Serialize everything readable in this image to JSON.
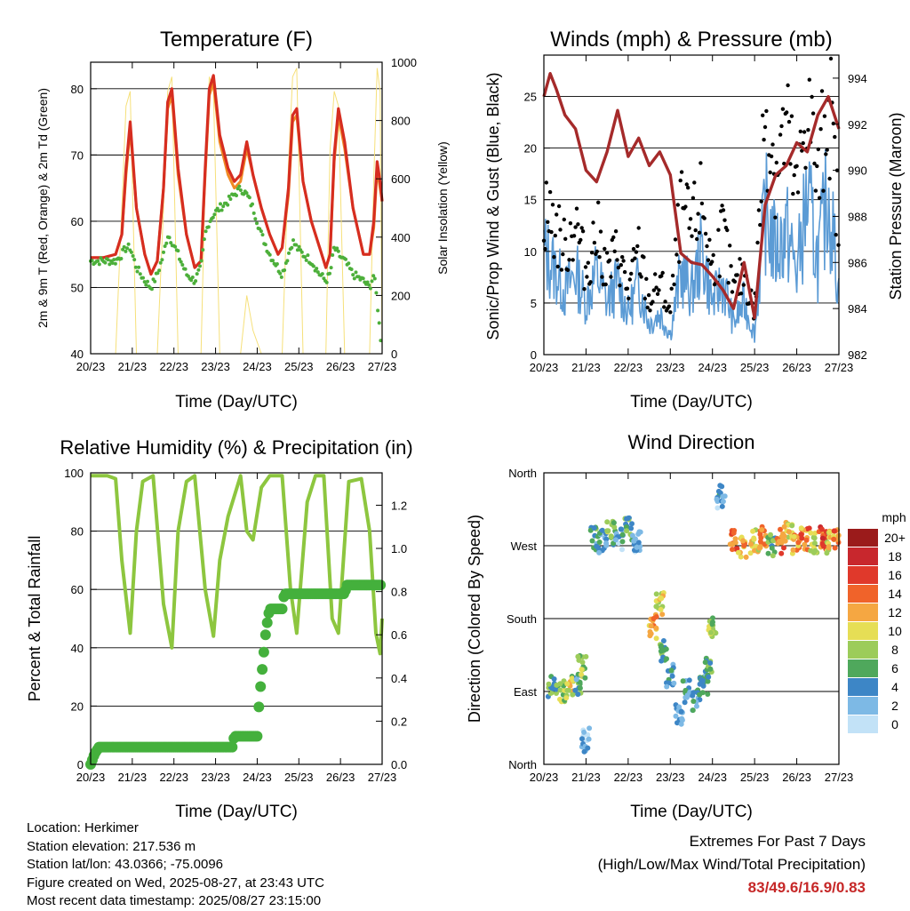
{
  "panels": {
    "temperature": {
      "title": "Temperature (F)",
      "xlabel": "Time (Day/UTC)",
      "ylabel": "2m & 9m T (Red, Orange) & 2m Td (Green)",
      "y2label": "Solar Insolation (Yellow)"
    },
    "winds": {
      "title": "Winds (mph) & Pressure (mb)",
      "xlabel": "Time (Day/UTC)",
      "ylabel": "Sonic/Prop Wind & Gust (Blue, Black)",
      "y2label": "Station Pressure (Maroon)"
    },
    "humidity": {
      "title": "Relative Humidity (%) & Precipitation (in)",
      "xlabel": "Time (Day/UTC)",
      "ylabel": "Percent & Total Rainfall"
    },
    "direction": {
      "title": "Wind Direction",
      "xlabel": "Time (Day/UTC)",
      "ylabel": "Direction (Colored By Speed)",
      "legend_title": "mph"
    }
  },
  "info": {
    "location": "Location: Herkimer",
    "elevation": "Station elevation: 217.536 m",
    "latlon": "Station lat/lon: 43.0366; -75.0096",
    "created": "Figure created on Wed, 2025-08-27, at 23:43 UTC",
    "recent": "Most recent data timestamp: 2025/08/27 23:15:00"
  },
  "extremes": {
    "line1": "Extremes For Past 7 Days",
    "line2": "(High/Low/Max Wind/Total Precipitation)",
    "values": "83/49.6/16.9/0.83"
  },
  "colors": {
    "temp2m": "#d62d20",
    "temp9m": "#f08a24",
    "dewpoint": "#4caf3a",
    "solar": "#f6e07a",
    "wind": "#5b9bd5",
    "gust": "#000000",
    "pressure": "#a52a2a",
    "rh": "#8dc63f",
    "precip": "#44b03c"
  },
  "chart_data": [
    {
      "type": "line",
      "title": "Temperature (F)",
      "xlabel": "Time (Day/UTC)",
      "ylabel": "2m & 9m T (Red, Orange) & 2m Td (Green)",
      "y2label": "Solar Insolation (Yellow)",
      "x_ticks": [
        "20/23",
        "21/23",
        "22/23",
        "23/23",
        "24/23",
        "25/23",
        "26/23",
        "27/23"
      ],
      "ylim": [
        40,
        84
      ],
      "y_ticks": [
        40,
        50,
        60,
        70,
        80
      ],
      "y2lim": [
        0,
        1000
      ],
      "y2_ticks": [
        0,
        200,
        400,
        600,
        800,
        1000
      ],
      "grid": "y",
      "x": [
        0,
        0.3,
        0.6,
        0.75,
        0.85,
        0.95,
        1.1,
        1.3,
        1.45,
        1.6,
        1.75,
        1.85,
        1.95,
        2.1,
        2.3,
        2.5,
        2.65,
        2.75,
        2.85,
        2.95,
        3.1,
        3.3,
        3.45,
        3.6,
        3.75,
        3.9,
        4.1,
        4.3,
        4.5,
        4.6,
        4.75,
        4.85,
        4.95,
        5.1,
        5.3,
        5.5,
        5.65,
        5.75,
        5.85,
        5.95,
        6.1,
        6.3,
        6.55,
        6.7,
        6.8,
        6.88,
        6.95,
        7.0
      ],
      "series": [
        {
          "name": "2m T (Red)",
          "values": [
            54.5,
            54.5,
            55,
            58,
            68,
            75,
            62,
            55,
            52,
            54,
            65,
            78,
            80,
            68,
            58,
            53,
            54,
            68,
            80,
            82,
            73,
            68,
            66,
            67,
            72,
            67,
            62,
            58,
            55,
            56,
            65,
            76,
            77,
            66,
            60,
            56,
            53,
            55,
            70,
            77,
            72,
            62,
            55,
            55,
            60,
            69,
            66,
            63
          ]
        },
        {
          "name": "9m T (Orange)",
          "values": [
            54.5,
            54.5,
            55,
            58,
            67,
            74,
            62,
            55,
            52,
            54,
            65,
            77,
            79,
            67,
            58,
            53,
            54,
            67,
            79,
            81,
            72,
            67,
            65,
            66,
            71,
            67,
            62,
            58,
            55,
            56,
            64,
            75,
            76,
            66,
            60,
            56,
            53,
            55,
            69,
            76,
            71,
            62,
            55,
            55,
            59,
            68,
            65,
            63
          ]
        },
        {
          "name": "2m Td (Green)",
          "values": [
            54,
            54,
            54,
            55,
            56,
            56,
            53,
            51,
            50,
            52,
            55,
            58,
            57,
            55,
            52,
            51,
            53,
            58,
            60,
            61,
            62,
            63,
            64,
            65,
            64,
            62,
            58,
            55,
            53,
            52,
            55,
            57,
            56,
            55,
            54,
            52,
            51,
            52,
            56,
            55,
            54,
            52,
            51,
            50,
            52,
            48,
            43,
            41
          ]
        },
        {
          "name": "Solar Insolation (Yellow)",
          "axis": "y2",
          "values": [
            0,
            0,
            0,
            500,
            850,
            900,
            0,
            0,
            0,
            0,
            500,
            900,
            950,
            0,
            0,
            0,
            0,
            600,
            950,
            900,
            0,
            0,
            0,
            0,
            200,
            80,
            0,
            0,
            0,
            0,
            650,
            950,
            980,
            0,
            0,
            0,
            0,
            700,
            900,
            850,
            0,
            0,
            0,
            0,
            600,
            980,
            900,
            0
          ]
        }
      ]
    },
    {
      "type": "line",
      "title": "Winds (mph) & Pressure (mb)",
      "xlabel": "Time (Day/UTC)",
      "ylabel": "Sonic/Prop Wind & Gust (Blue, Black)",
      "y2label": "Station Pressure (Maroon)",
      "x_ticks": [
        "20/23",
        "21/23",
        "22/23",
        "23/23",
        "24/23",
        "25/23",
        "26/23",
        "27/23"
      ],
      "ylim": [
        0,
        29
      ],
      "y_ticks": [
        0,
        5,
        10,
        15,
        20,
        25
      ],
      "y2lim": [
        982,
        995
      ],
      "y2_ticks": [
        982,
        984,
        986,
        988,
        990,
        992,
        994
      ],
      "grid": "y",
      "x": [
        0,
        0.15,
        0.3,
        0.5,
        0.75,
        1.0,
        1.25,
        1.5,
        1.75,
        2.0,
        2.25,
        2.5,
        2.75,
        3.0,
        3.25,
        3.5,
        3.75,
        4.0,
        4.25,
        4.5,
        4.75,
        5.0,
        5.25,
        5.5,
        5.75,
        6.0,
        6.25,
        6.5,
        6.75,
        7.0
      ],
      "series": [
        {
          "name": "Sonic/Prop Wind (Blue)",
          "values": [
            10,
            9,
            8,
            6,
            8,
            5,
            8,
            5,
            7,
            4,
            7,
            3,
            4,
            2,
            8,
            6,
            10,
            5,
            7,
            3,
            5,
            2,
            14,
            10,
            12,
            8,
            15,
            9,
            16,
            6
          ]
        },
        {
          "name": "Gust (Black)",
          "values": [
            14,
            13,
            12,
            10,
            13,
            8,
            12,
            8,
            10,
            6,
            10,
            5,
            7,
            4,
            14,
            12,
            15,
            8,
            12,
            6,
            8,
            4,
            24,
            18,
            22,
            15,
            25,
            16,
            26,
            12
          ]
        },
        {
          "name": "Station Pressure (Maroon)",
          "axis": "y2",
          "values": [
            993.2,
            994.2,
            993.5,
            992.4,
            991.8,
            990,
            989.5,
            990.8,
            992.6,
            990.6,
            991.4,
            990.2,
            990.8,
            989.8,
            986.4,
            986,
            985.9,
            985.4,
            984.8,
            984,
            986,
            983.6,
            988.5,
            989.8,
            990.2,
            991.2,
            990.8,
            992.4,
            993.2,
            991.8
          ]
        }
      ]
    },
    {
      "type": "line",
      "title": "Relative Humidity (%) & Precipitation (in)",
      "xlabel": "Time (Day/UTC)",
      "ylabel": "Percent & Total Rainfall",
      "x_ticks": [
        "20/23",
        "21/23",
        "22/23",
        "23/23",
        "24/23",
        "25/23",
        "26/23",
        "27/23"
      ],
      "ylim": [
        0,
        100
      ],
      "y_ticks": [
        0,
        20,
        40,
        60,
        80,
        100
      ],
      "y2lim": [
        0,
        1.35
      ],
      "y2_ticks": [
        0.0,
        0.2,
        0.4,
        0.6,
        0.8,
        1.0,
        1.2
      ],
      "grid": "y",
      "x": [
        0,
        0.4,
        0.6,
        0.75,
        0.95,
        1.1,
        1.25,
        1.5,
        1.75,
        1.95,
        2.1,
        2.3,
        2.5,
        2.75,
        2.95,
        3.1,
        3.3,
        3.6,
        3.75,
        3.9,
        4.1,
        4.3,
        4.6,
        4.8,
        4.95,
        5.2,
        5.4,
        5.6,
        5.8,
        5.95,
        6.2,
        6.5,
        6.7,
        6.85,
        6.95,
        7.0
      ],
      "series": [
        {
          "name": "Relative Humidity",
          "values": [
            99,
            99,
            98,
            70,
            45,
            80,
            97,
            99,
            55,
            40,
            80,
            97,
            99,
            60,
            44,
            70,
            85,
            99,
            80,
            77,
            95,
            99,
            99,
            60,
            45,
            90,
            99,
            99,
            50,
            45,
            97,
            98,
            80,
            45,
            38,
            50
          ]
        },
        {
          "name": "Total Rainfall",
          "axis": "y2",
          "x": [
            0,
            0.1,
            0.2,
            3.4,
            3.45,
            4.0,
            4.05,
            4.15,
            4.2,
            4.25,
            4.3,
            4.6,
            4.65,
            6.1,
            6.15,
            7.0
          ],
          "values": [
            0,
            0.05,
            0.08,
            0.08,
            0.13,
            0.13,
            0.3,
            0.5,
            0.6,
            0.67,
            0.72,
            0.72,
            0.79,
            0.79,
            0.83,
            0.83
          ]
        }
      ]
    },
    {
      "type": "scatter",
      "title": "Wind Direction",
      "xlabel": "Time (Day/UTC)",
      "ylabel": "Direction (Colored By Speed)",
      "x_ticks": [
        "20/23",
        "21/23",
        "22/23",
        "23/23",
        "24/23",
        "25/23",
        "26/23",
        "27/23"
      ],
      "y_ticks": [
        "North",
        "East",
        "South",
        "West",
        "North"
      ],
      "ylim": [
        0,
        360
      ],
      "grid": "y",
      "legend": {
        "title": "mph",
        "labels": [
          "20+",
          "18",
          "16",
          "14",
          "12",
          "10",
          "8",
          "6",
          "4",
          "2",
          "0"
        ],
        "colors": [
          "#9b1b1b",
          "#c8272d",
          "#e0392b",
          "#f0632a",
          "#f5a742",
          "#e6de55",
          "#9ccc5a",
          "#4fa85c",
          "#3d86c6",
          "#7db9e5",
          "#c2e2f7"
        ],
        "position": "right"
      },
      "x": [
        0.2,
        0.4,
        0.6,
        0.8,
        0.9,
        1.0,
        1.2,
        1.4,
        1.6,
        1.8,
        2.0,
        2.2,
        2.6,
        2.75,
        2.85,
        3.0,
        3.2,
        3.4,
        3.6,
        3.8,
        3.9,
        4.0,
        4.2,
        4.5,
        4.7,
        5.0,
        5.2,
        5.4,
        5.6,
        5.8,
        6.0,
        6.2,
        6.4,
        6.6,
        6.8,
        6.95
      ],
      "values": [
        95,
        92,
        95,
        100,
        120,
        30,
        280,
        275,
        285,
        280,
        290,
        275,
        170,
        200,
        140,
        110,
        60,
        90,
        80,
        100,
        120,
        170,
        330,
        280,
        270,
        275,
        280,
        270,
        275,
        285,
        270,
        280,
        275,
        280,
        275,
        280
      ],
      "speeds": [
        6,
        8,
        9,
        5,
        7,
        2,
        5,
        4,
        7,
        3,
        6,
        2,
        12,
        10,
        6,
        3,
        4,
        3,
        4,
        5,
        6,
        8,
        3,
        14,
        12,
        10,
        13,
        6,
        14,
        10,
        12,
        13,
        9,
        15,
        11,
        13
      ]
    }
  ]
}
